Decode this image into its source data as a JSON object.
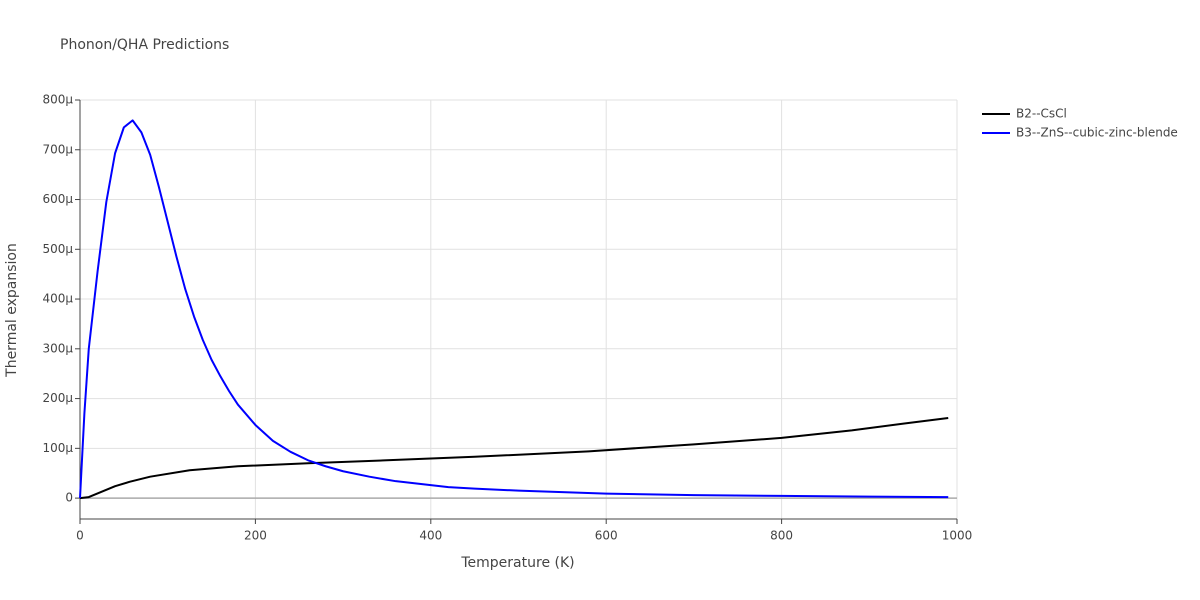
{
  "chart_data": {
    "type": "line",
    "title": "Phonon/QHA Predictions",
    "x_label": "Temperature (K)",
    "y_label": "Thermal expansion",
    "xlim": [
      0,
      1000
    ],
    "xticks": [
      0,
      200,
      400,
      600,
      800,
      1000
    ],
    "ylim": [
      -4.2e-05,
      0.0008
    ],
    "yticks": [
      0,
      {
        "value": 0.0001,
        "label": "100μ"
      },
      {
        "value": 0.0002,
        "label": "200μ"
      },
      {
        "value": 0.0003,
        "label": "300μ"
      },
      {
        "value": 0.0004,
        "label": "400μ"
      },
      {
        "value": 0.0005,
        "label": "500μ"
      },
      {
        "value": 0.0006,
        "label": "600μ"
      },
      {
        "value": 0.0007,
        "label": "700μ"
      },
      {
        "value": 0.0008,
        "label": "800μ"
      }
    ],
    "grid": true,
    "legend": "right",
    "series": [
      {
        "name": "B2--CsCl",
        "color": "#000000",
        "x": [
          0,
          10,
          40,
          57,
          80,
          125,
          180,
          260,
          350,
          450,
          580,
          700,
          800,
          880,
          940,
          990
        ],
        "values": [
          0,
          2e-06,
          2.4e-05,
          3.3e-05,
          4.3e-05,
          5.6e-05,
          6.4e-05,
          7e-05,
          7.6e-05,
          8.3e-05,
          9.4e-05,
          0.000108,
          0.000121,
          0.000136,
          0.00015,
          0.000161
        ]
      },
      {
        "name": "B3--ZnS--cubic-zinc-blende",
        "color": "#0000ff",
        "x": [
          0,
          5,
          10,
          20,
          30,
          40,
          50,
          60,
          70,
          80,
          90,
          100,
          110,
          120,
          130,
          140,
          150,
          160,
          170,
          180,
          200,
          220,
          240,
          260,
          280,
          300,
          330,
          360,
          400,
          420,
          450,
          500,
          600,
          700,
          800,
          900,
          990
        ],
        "values": [
          0,
          0.00017,
          0.0003,
          0.000455,
          0.000595,
          0.000693,
          0.000745,
          0.000759,
          0.000735,
          0.00069,
          0.000625,
          0.000555,
          0.000485,
          0.00042,
          0.000365,
          0.000318,
          0.000278,
          0.000245,
          0.000215,
          0.000188,
          0.000147,
          0.000115,
          9.3e-05,
          7.6e-05,
          6.4e-05,
          5.4e-05,
          4.3e-05,
          3.4e-05,
          2.6e-05,
          2.2e-05,
          1.9e-05,
          1.5e-05,
          9e-06,
          6e-06,
          4.5e-06,
          3e-06,
          2e-06
        ]
      }
    ]
  }
}
